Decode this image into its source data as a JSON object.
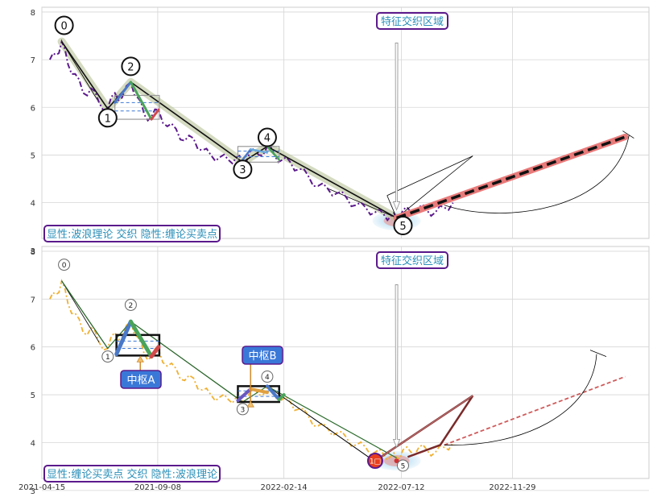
{
  "chart_data": {
    "type": "line",
    "y_ticks": [
      "3",
      "4",
      "5",
      "6",
      "7",
      "8"
    ],
    "x_ticks": [
      "2021-04-15",
      "2021-09-08",
      "2022-02-14",
      "2022-07-12",
      "2022-11-29"
    ],
    "grid": true,
    "panels": [
      {
        "id": "top",
        "label": "显性:波浪理论 交织 隐性:缠论买卖点",
        "annotation": "特征交织区域",
        "wave_labels": [
          "0",
          "1",
          "2",
          "3",
          "4",
          "5"
        ],
        "wave_points": [
          {
            "label": "0",
            "date": "2021-05-10",
            "value": 7.38
          },
          {
            "label": "1",
            "date": "2021-07-07",
            "value": 5.97
          },
          {
            "label": "2",
            "date": "2021-08-05",
            "value": 6.53
          },
          {
            "label": "3",
            "date": "2021-12-24",
            "value": 4.85
          },
          {
            "label": "4",
            "date": "2022-01-24",
            "value": 5.18
          },
          {
            "label": "5",
            "date": "2022-07-06",
            "value": 3.68
          }
        ],
        "projection": {
          "from": {
            "date": "2022-07-06",
            "value": 3.68
          },
          "to": {
            "date": "2023-04-20",
            "value": 5.38
          }
        }
      },
      {
        "id": "bottom",
        "label": "显性:缠论买卖点 交织 隐性:波浪理论",
        "annotation": "特征交织区域",
        "wave_labels": [
          "0",
          "1",
          "2",
          "3",
          "4",
          "5"
        ],
        "pivots": [
          "中枢A",
          "中枢B"
        ],
        "buy_point": "1□",
        "pivot_zones": [
          {
            "name": "中枢A",
            "date_start": "2021-07-18",
            "date_end": "2021-09-10",
            "low": 5.82,
            "high": 6.25
          },
          {
            "name": "中枢B",
            "date_start": "2021-12-18",
            "date_end": "2022-02-08",
            "low": 4.85,
            "high": 5.18
          }
        ]
      }
    ],
    "price_series": {
      "name": "",
      "x": [
        "2021-04-25",
        "2021-05-03",
        "2021-05-10",
        "2021-05-18",
        "2021-05-27",
        "2021-06-06",
        "2021-06-16",
        "2021-06-26",
        "2021-07-07",
        "2021-07-16",
        "2021-07-25",
        "2021-08-05",
        "2021-08-14",
        "2021-08-22",
        "2021-08-31",
        "2021-09-09",
        "2021-09-20",
        "2021-10-01",
        "2021-10-12",
        "2021-10-23",
        "2021-11-03",
        "2021-11-14",
        "2021-11-25",
        "2021-12-06",
        "2021-12-16",
        "2021-12-24",
        "2022-01-03",
        "2022-01-13",
        "2022-01-24",
        "2022-02-02",
        "2022-02-12",
        "2022-02-22",
        "2022-03-05",
        "2022-03-17",
        "2022-03-29",
        "2022-04-10",
        "2022-04-22",
        "2022-05-04",
        "2022-05-16",
        "2022-05-28",
        "2022-06-09",
        "2022-06-20",
        "2022-06-29",
        "2022-07-06",
        "2022-07-14",
        "2022-07-24",
        "2022-08-03",
        "2022-08-13",
        "2022-08-24",
        "2022-09-04",
        "2022-09-15"
      ],
      "values": [
        7.0,
        7.1,
        7.38,
        6.9,
        6.7,
        6.3,
        6.4,
        6.1,
        5.97,
        6.3,
        6.2,
        6.53,
        6.2,
        5.85,
        5.8,
        5.95,
        5.6,
        5.55,
        5.3,
        5.35,
        5.1,
        5.0,
        4.95,
        4.9,
        4.95,
        4.85,
        5.1,
        5.0,
        5.18,
        5.0,
        4.9,
        4.85,
        4.7,
        4.55,
        4.35,
        4.3,
        4.2,
        4.1,
        3.95,
        3.9,
        3.8,
        3.75,
        3.72,
        3.68,
        3.85,
        3.8,
        3.9,
        3.85,
        3.8,
        3.9,
        4.0
      ]
    }
  }
}
